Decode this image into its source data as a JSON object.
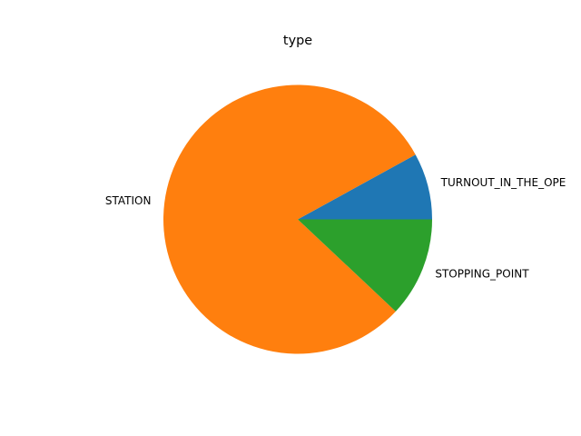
{
  "chart_data": {
    "type": "pie",
    "title": "type",
    "start_angle_deg": 0,
    "direction": "counterclockwise",
    "slices": [
      {
        "label": "TURNOUT_IN_THE_OPE",
        "value": 8,
        "color": "#1f77b4"
      },
      {
        "label": "STATION",
        "value": 80,
        "color": "#ff7f0e"
      },
      {
        "label": "STOPPING_POINT",
        "value": 12,
        "color": "#2ca02c"
      }
    ]
  }
}
